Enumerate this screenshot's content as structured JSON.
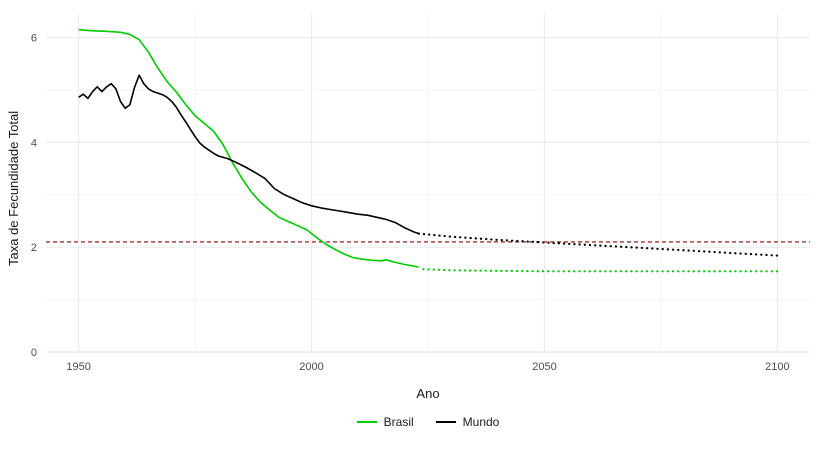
{
  "figure": {
    "background": "#FFFFFF"
  },
  "chart_data": {
    "type": "line",
    "title": "",
    "xlabel": "Ano",
    "ylabel": "Taxa de Fecundidade Total",
    "xlim": [
      1943,
      2107
    ],
    "ylim": [
      0,
      6.45
    ],
    "x_ticks": [
      1950,
      2000,
      2050,
      2100
    ],
    "x_minor_ticks": [
      1975,
      2025,
      2075
    ],
    "y_ticks": [
      0,
      2,
      4,
      6
    ],
    "y_minor_ticks": [
      1,
      3,
      5
    ],
    "grid": true,
    "legend_position": "bottom",
    "colors": {
      "background": "#FFFFFF",
      "grid_major": "#EBEBEB",
      "grid_minor": "#F5F5F5",
      "tick_text": "#4D4D4D",
      "axis_title_text": "#1A1A1A"
    },
    "reference_line": {
      "y": 2.1,
      "style": "dashed",
      "color": "#8B0000",
      "meaning": "replacement-level"
    },
    "series": [
      {
        "name": "Brasil",
        "color": "#00CC00",
        "historical": {
          "style": "solid",
          "points": [
            [
              1950,
              6.15
            ],
            [
              1953,
              6.13
            ],
            [
              1956,
              6.12
            ],
            [
              1959,
              6.1
            ],
            [
              1961,
              6.06
            ],
            [
              1963,
              5.96
            ],
            [
              1965,
              5.72
            ],
            [
              1967,
              5.42
            ],
            [
              1969,
              5.16
            ],
            [
              1971,
              4.96
            ],
            [
              1973,
              4.72
            ],
            [
              1975,
              4.51
            ],
            [
              1977,
              4.36
            ],
            [
              1979,
              4.21
            ],
            [
              1981,
              3.96
            ],
            [
              1983,
              3.62
            ],
            [
              1985,
              3.32
            ],
            [
              1987,
              3.06
            ],
            [
              1989,
              2.86
            ],
            [
              1991,
              2.71
            ],
            [
              1993,
              2.57
            ],
            [
              1995,
              2.49
            ],
            [
              1997,
              2.41
            ],
            [
              1999,
              2.33
            ],
            [
              2001,
              2.19
            ],
            [
              2003,
              2.06
            ],
            [
              2005,
              1.96
            ],
            [
              2007,
              1.87
            ],
            [
              2009,
              1.8
            ],
            [
              2011,
              1.77
            ],
            [
              2013,
              1.75
            ],
            [
              2015,
              1.74
            ],
            [
              2016,
              1.76
            ],
            [
              2018,
              1.71
            ],
            [
              2020,
              1.67
            ],
            [
              2022,
              1.64
            ],
            [
              2023,
              1.62
            ]
          ]
        },
        "projection": {
          "style": "dotted",
          "points": [
            [
              2024,
              1.58
            ],
            [
              2030,
              1.56
            ],
            [
              2040,
              1.55
            ],
            [
              2050,
              1.54
            ],
            [
              2060,
              1.54
            ],
            [
              2070,
              1.54
            ],
            [
              2080,
              1.54
            ],
            [
              2090,
              1.54
            ],
            [
              2100,
              1.54
            ]
          ]
        }
      },
      {
        "name": "Mundo",
        "color": "#000000",
        "historical": {
          "style": "solid",
          "points": [
            [
              1950,
              4.86
            ],
            [
              1951,
              4.92
            ],
            [
              1952,
              4.84
            ],
            [
              1953,
              4.97
            ],
            [
              1954,
              5.06
            ],
            [
              1955,
              4.97
            ],
            [
              1956,
              5.06
            ],
            [
              1957,
              5.12
            ],
            [
              1958,
              5.02
            ],
            [
              1959,
              4.78
            ],
            [
              1960,
              4.65
            ],
            [
              1961,
              4.72
            ],
            [
              1962,
              5.05
            ],
            [
              1963,
              5.28
            ],
            [
              1964,
              5.12
            ],
            [
              1965,
              5.02
            ],
            [
              1966,
              4.97
            ],
            [
              1967,
              4.94
            ],
            [
              1968,
              4.91
            ],
            [
              1969,
              4.86
            ],
            [
              1970,
              4.78
            ],
            [
              1971,
              4.67
            ],
            [
              1972,
              4.52
            ],
            [
              1973,
              4.39
            ],
            [
              1974,
              4.25
            ],
            [
              1975,
              4.11
            ],
            [
              1976,
              3.99
            ],
            [
              1977,
              3.91
            ],
            [
              1978,
              3.85
            ],
            [
              1979,
              3.79
            ],
            [
              1980,
              3.74
            ],
            [
              1982,
              3.69
            ],
            [
              1984,
              3.61
            ],
            [
              1986,
              3.52
            ],
            [
              1988,
              3.42
            ],
            [
              1990,
              3.31
            ],
            [
              1992,
              3.12
            ],
            [
              1994,
              3.01
            ],
            [
              1996,
              2.93
            ],
            [
              1998,
              2.85
            ],
            [
              2000,
              2.79
            ],
            [
              2002,
              2.75
            ],
            [
              2004,
              2.72
            ],
            [
              2006,
              2.69
            ],
            [
              2008,
              2.66
            ],
            [
              2010,
              2.63
            ],
            [
              2012,
              2.61
            ],
            [
              2014,
              2.57
            ],
            [
              2016,
              2.53
            ],
            [
              2018,
              2.47
            ],
            [
              2020,
              2.37
            ],
            [
              2022,
              2.29
            ],
            [
              2023,
              2.26
            ]
          ]
        },
        "projection": {
          "style": "dotted",
          "points": [
            [
              2023,
              2.26
            ],
            [
              2030,
              2.2
            ],
            [
              2040,
              2.14
            ],
            [
              2050,
              2.09
            ],
            [
              2060,
              2.04
            ],
            [
              2070,
              1.99
            ],
            [
              2080,
              1.94
            ],
            [
              2090,
              1.89
            ],
            [
              2100,
              1.84
            ]
          ]
        }
      }
    ]
  }
}
